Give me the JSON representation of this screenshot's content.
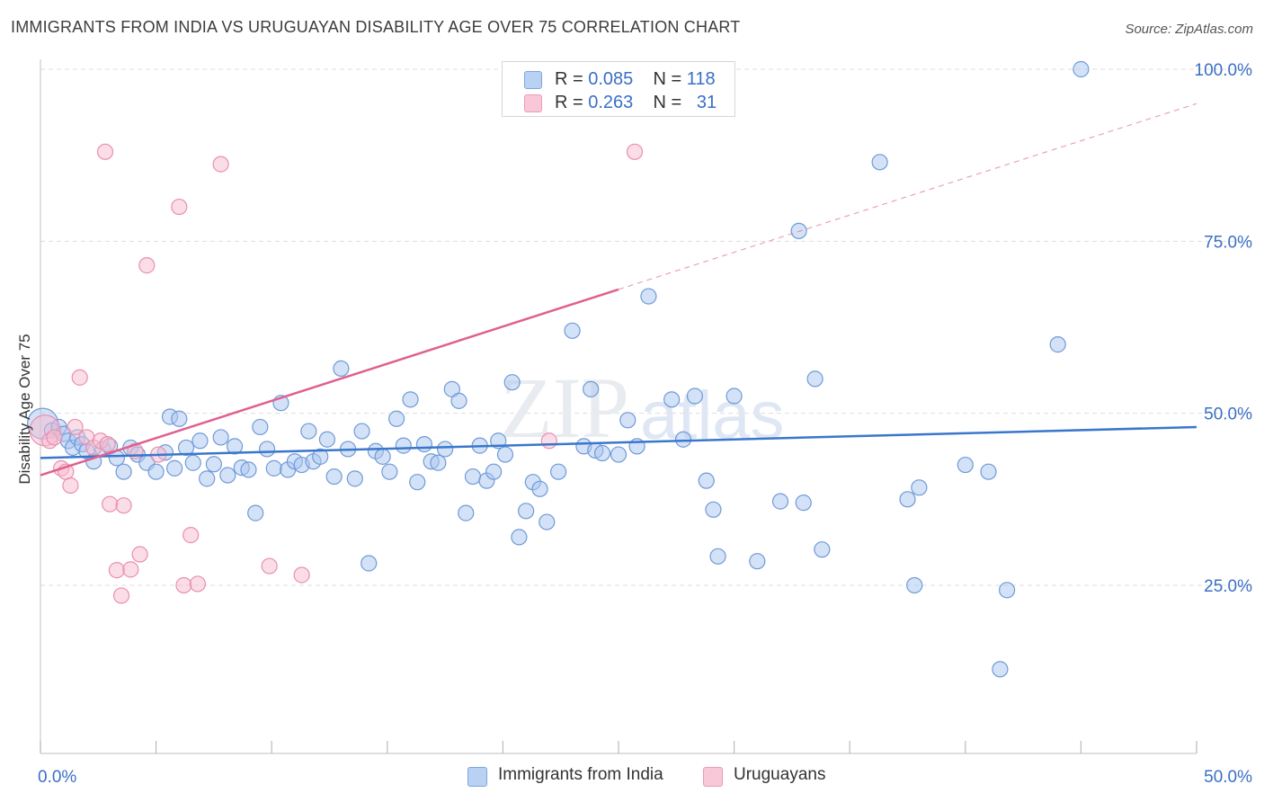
{
  "title": "IMMIGRANTS FROM INDIA VS URUGUAYAN DISABILITY AGE OVER 75 CORRELATION CHART",
  "source": "Source: ZipAtlas.com",
  "watermark": {
    "zip": "ZIP",
    "atlas": "atlas"
  },
  "legend": {
    "r_label": "R =",
    "n_label": "N =",
    "series": [
      {
        "r": "0.085",
        "n": "118"
      },
      {
        "r": "0.263",
        "n": "31"
      }
    ]
  },
  "colors": {
    "india_fill": "#a9c6f0",
    "india_stroke": "#6f9ad8",
    "india_line": "#3a77cc",
    "uru_fill": "#f7bcd0",
    "uru_stroke": "#e98fb0",
    "uru_line": "#e0608f",
    "tick_label": "#3a6fc4",
    "grid": "#dddddd"
  },
  "chart_data": {
    "type": "scatter",
    "title": "IMMIGRANTS FROM INDIA VS URUGUAYAN DISABILITY AGE OVER 75 CORRELATION CHART",
    "xlabel": "",
    "ylabel": "Disability Age Over 75",
    "xlim": [
      0,
      50
    ],
    "ylim": [
      0,
      105
    ],
    "x_tick_labels": [
      "0.0%",
      "50.0%"
    ],
    "y_ticks": [
      25,
      50,
      75,
      100
    ],
    "y_tick_labels": [
      "25.0%",
      "50.0%",
      "75.0%",
      "100.0%"
    ],
    "grid": true,
    "series": [
      {
        "name": "Immigrants from India",
        "r": 0.085,
        "n": 118,
        "trend": {
          "x0": 0,
          "y0": 43.5,
          "x1": 50,
          "y1": 48.0
        },
        "points": [
          [
            0.1,
            48.5,
            "big"
          ],
          [
            0.5,
            47.5
          ],
          [
            0.8,
            48
          ],
          [
            1.0,
            47
          ],
          [
            1.2,
            46
          ],
          [
            1.4,
            45
          ],
          [
            1.6,
            46.5
          ],
          [
            1.8,
            45.5
          ],
          [
            2.0,
            44.5
          ],
          [
            2.3,
            43
          ],
          [
            2.7,
            44.8
          ],
          [
            3.0,
            45.2
          ],
          [
            3.3,
            43.5
          ],
          [
            3.6,
            41.5
          ],
          [
            3.9,
            45
          ],
          [
            4.2,
            44
          ],
          [
            4.6,
            42.8
          ],
          [
            5.0,
            41.5
          ],
          [
            5.4,
            44.3
          ],
          [
            5.6,
            49.5
          ],
          [
            5.8,
            42
          ],
          [
            6.0,
            49.2
          ],
          [
            6.3,
            45
          ],
          [
            6.6,
            42.8
          ],
          [
            6.9,
            46
          ],
          [
            7.2,
            40.5
          ],
          [
            7.5,
            42.6
          ],
          [
            7.8,
            46.5
          ],
          [
            8.1,
            41
          ],
          [
            8.4,
            45.2
          ],
          [
            8.7,
            42.1
          ],
          [
            9.0,
            41.8
          ],
          [
            9.3,
            35.5
          ],
          [
            9.5,
            48
          ],
          [
            9.8,
            44.8
          ],
          [
            10.1,
            42
          ],
          [
            10.4,
            51.5
          ],
          [
            10.7,
            41.8
          ],
          [
            11.0,
            43
          ],
          [
            11.3,
            42.5
          ],
          [
            11.6,
            47.4
          ],
          [
            11.8,
            43
          ],
          [
            12.1,
            43.7
          ],
          [
            12.4,
            46.2
          ],
          [
            12.7,
            40.8
          ],
          [
            13.0,
            56.5
          ],
          [
            13.3,
            44.8
          ],
          [
            13.6,
            40.5
          ],
          [
            13.9,
            47.4
          ],
          [
            14.2,
            28.2
          ],
          [
            14.5,
            44.5
          ],
          [
            14.8,
            43.7
          ],
          [
            15.1,
            41.5
          ],
          [
            15.4,
            49.2
          ],
          [
            15.7,
            45.3
          ],
          [
            16.0,
            52
          ],
          [
            16.3,
            40
          ],
          [
            16.6,
            45.5
          ],
          [
            16.9,
            43
          ],
          [
            17.2,
            42.8
          ],
          [
            17.5,
            44.8
          ],
          [
            17.8,
            53.5
          ],
          [
            18.1,
            51.8
          ],
          [
            18.4,
            35.5
          ],
          [
            18.7,
            40.8
          ],
          [
            19.0,
            45.3
          ],
          [
            19.3,
            40.2
          ],
          [
            19.6,
            41.5
          ],
          [
            19.8,
            46
          ],
          [
            20.1,
            44
          ],
          [
            20.4,
            54.5
          ],
          [
            20.7,
            32
          ],
          [
            21.0,
            35.8
          ],
          [
            21.3,
            40
          ],
          [
            21.6,
            39
          ],
          [
            21.9,
            34.2
          ],
          [
            22.4,
            41.5
          ],
          [
            23.0,
            62
          ],
          [
            23.5,
            45.2
          ],
          [
            24.0,
            44.6
          ],
          [
            24.3,
            44.2
          ],
          [
            23.8,
            53.5
          ],
          [
            25.0,
            44
          ],
          [
            25.4,
            49
          ],
          [
            25.8,
            45.2
          ],
          [
            26.3,
            67
          ],
          [
            27.3,
            52
          ],
          [
            27.8,
            46.2
          ],
          [
            28.3,
            52.5
          ],
          [
            28.8,
            40.2
          ],
          [
            29.1,
            36
          ],
          [
            29.3,
            29.2
          ],
          [
            30.0,
            52.5
          ],
          [
            31.0,
            28.5
          ],
          [
            32.0,
            37.2
          ],
          [
            32.8,
            76.5
          ],
          [
            33.0,
            37
          ],
          [
            33.5,
            55
          ],
          [
            33.8,
            30.2
          ],
          [
            36.3,
            86.5
          ],
          [
            37.5,
            37.5
          ],
          [
            37.8,
            25
          ],
          [
            38.0,
            39.2
          ],
          [
            40.0,
            42.5
          ],
          [
            41.0,
            41.5
          ],
          [
            41.5,
            12.8
          ],
          [
            41.8,
            24.3
          ],
          [
            44.0,
            60
          ],
          [
            45.0,
            100
          ]
        ]
      },
      {
        "name": "Uruguayans",
        "r": 0.263,
        "n": 31,
        "trend": {
          "x0": 0,
          "y0": 41.0,
          "x1": 25,
          "y1": 68.0,
          "dash_x1": 50,
          "dash_y1": 95.0
        },
        "points": [
          [
            0.2,
            47.5,
            "big"
          ],
          [
            0.4,
            46
          ],
          [
            0.6,
            46.5
          ],
          [
            0.9,
            42
          ],
          [
            1.1,
            41.5
          ],
          [
            1.3,
            39.5
          ],
          [
            1.5,
            48
          ],
          [
            1.7,
            55.2
          ],
          [
            2.0,
            46.5
          ],
          [
            2.3,
            45
          ],
          [
            2.6,
            46
          ],
          [
            2.9,
            45.5
          ],
          [
            2.8,
            88
          ],
          [
            3.0,
            36.8
          ],
          [
            3.3,
            27.2
          ],
          [
            3.5,
            23.5
          ],
          [
            3.6,
            36.6
          ],
          [
            3.9,
            27.3
          ],
          [
            4.1,
            44.5
          ],
          [
            4.3,
            29.5
          ],
          [
            4.6,
            71.5
          ],
          [
            5.1,
            44
          ],
          [
            6.0,
            80
          ],
          [
            6.2,
            25
          ],
          [
            6.5,
            32.3
          ],
          [
            6.8,
            25.2
          ],
          [
            7.8,
            86.2
          ],
          [
            9.9,
            27.8
          ],
          [
            11.3,
            26.5
          ],
          [
            22.0,
            46
          ],
          [
            25.7,
            88
          ]
        ]
      }
    ]
  }
}
